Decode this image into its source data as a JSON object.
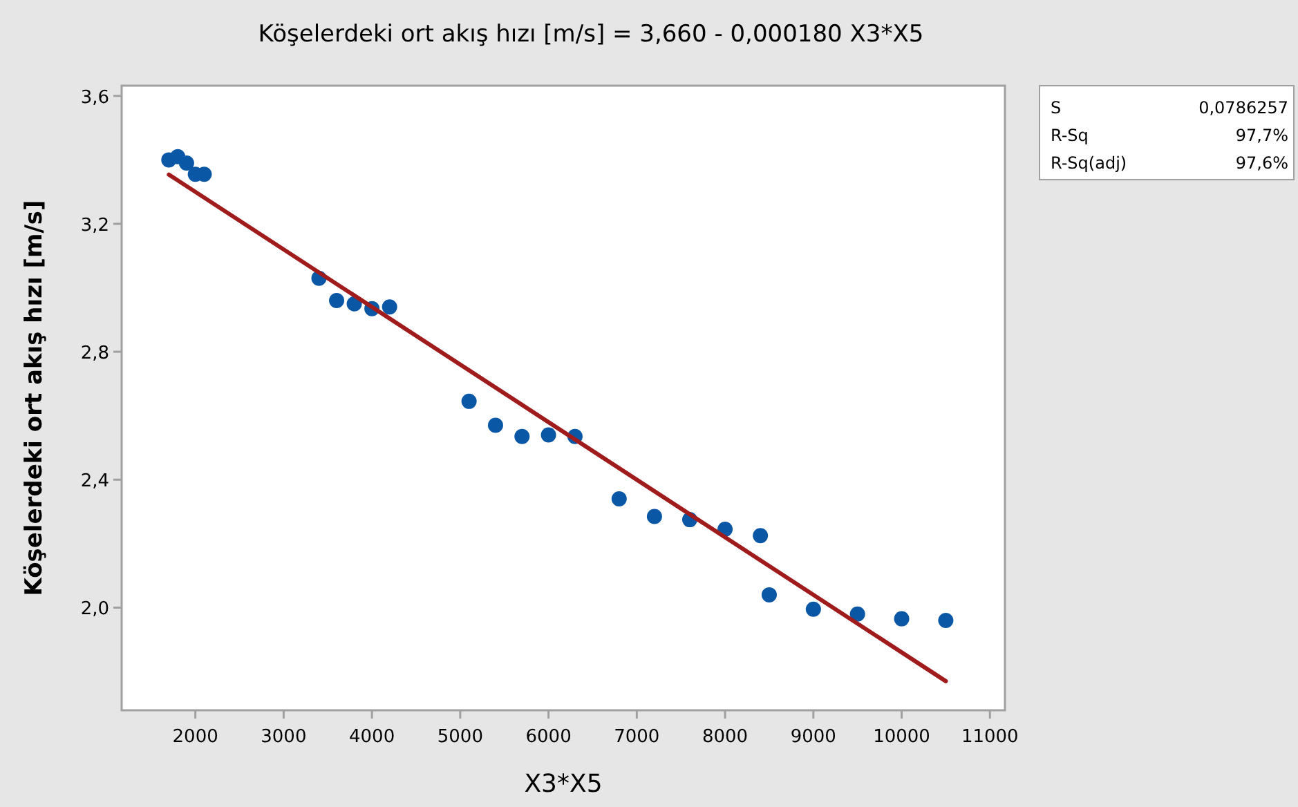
{
  "chart_data": {
    "type": "scatter",
    "title": "Köşelerdeki ort akış hızı [m/s] = 3,660 - 0,000180 X3*X5",
    "xlabel": "X3*X5",
    "ylabel": "Köşelerdeki ort akış hızı [m/s]",
    "xlim": [
      1165,
      11170
    ],
    "xticks": [
      2000,
      3000,
      4000,
      5000,
      6000,
      7000,
      8000,
      9000,
      10000,
      11000
    ],
    "ylim": [
      1.679,
      3.632
    ],
    "yticks": [
      {
        "value": 2,
        "label": "2,0"
      },
      {
        "value": 2.4,
        "label": "2,4"
      },
      {
        "value": 2.8,
        "label": "2,8"
      },
      {
        "value": 3.2,
        "label": "3,2"
      },
      {
        "value": 3.6,
        "label": "3,6"
      }
    ],
    "grid": false,
    "marker": "circle",
    "annotations": [
      "S",
      "0,0786257",
      "R-Sq",
      "97,7%",
      "R-Sq(adj)",
      "97,6%"
    ],
    "series": [
      {
        "color": "#0a57a6",
        "x": [
          1700,
          1800,
          1900,
          2000,
          2100,
          3400,
          3600,
          3800,
          4000,
          4200,
          5100,
          5400,
          5700,
          6000,
          6300,
          6800,
          7200,
          7600,
          8000,
          8400,
          8500,
          9000,
          9500,
          10000,
          10500
        ],
        "values": [
          3.4,
          3.41,
          3.39,
          3.355,
          3.355,
          3.03,
          2.96,
          2.95,
          2.935,
          2.94,
          2.645,
          2.57,
          2.535,
          2.54,
          2.535,
          2.34,
          2.285,
          2.275,
          2.245,
          2.225,
          2.04,
          1.995,
          1.98,
          1.965,
          1.96
        ]
      },
      {
        "type": "line",
        "color": "#a01c1c",
        "marker": "none",
        "line_style": "solid",
        "x": [
          1700,
          10500
        ],
        "values": [
          3.354,
          1.77
        ]
      }
    ]
  }
}
